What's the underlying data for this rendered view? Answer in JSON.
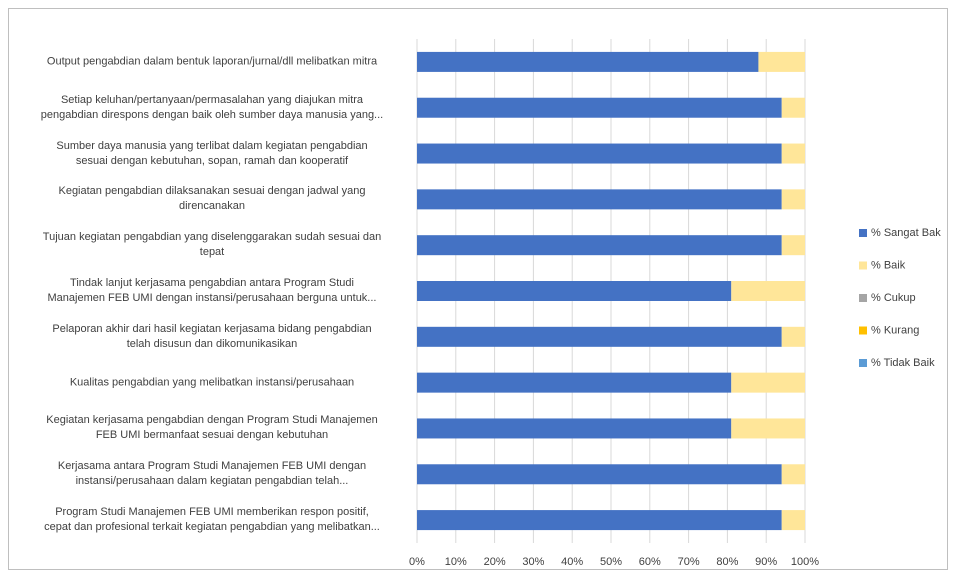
{
  "chart_data": {
    "type": "bar",
    "orientation": "horizontal",
    "stacked": true,
    "categories": [
      "Output pengabdian dalam bentuk laporan/jurnal/dll melibatkan mitra",
      "Setiap keluhan/pertanyaan/permasalahan yang diajukan mitra\npengabdian direspons dengan baik oleh sumber daya manusia yang...",
      "Sumber daya manusia yang terlibat dalam kegiatan pengabdian\nsesuai dengan kebutuhan, sopan, ramah dan kooperatif",
      "Kegiatan pengabdian dilaksanakan sesuai dengan jadwal yang\ndirencanakan",
      "Tujuan kegiatan pengabdian yang diselenggarakan sudah sesuai dan\ntepat",
      "Tindak lanjut kerjasama pengabdian antara Program Studi\nManajemen FEB UMI dengan instansi/perusahaan berguna untuk...",
      "Pelaporan akhir dari hasil kegiatan kerjasama bidang pengabdian\ntelah disusun dan dikomunikasikan",
      "Kualitas pengabdian yang melibatkan instansi/perusahaan",
      "Kegiatan kerjasama pengabdian dengan Program Studi Manajemen\nFEB UMI bermanfaat sesuai dengan kebutuhan",
      "Kerjasama antara Program Studi Manajemen FEB UMI dengan\ninstansi/perusahaan dalam kegiatan pengabdian telah...",
      "Program Studi Manajemen FEB UMI memberikan respon positif,\ncepat dan profesional terkait kegiatan pengabdian yang melibatkan..."
    ],
    "series": [
      {
        "name": "% Sangat Bak",
        "color": "#4472c4",
        "values": [
          88,
          94,
          94,
          94,
          94,
          81,
          94,
          81,
          81,
          94,
          94
        ]
      },
      {
        "name": "% Baik",
        "color": "#ffe699",
        "values": [
          12,
          6,
          6,
          6,
          6,
          19,
          6,
          19,
          19,
          6,
          6
        ]
      },
      {
        "name": "% Cukup",
        "color": "#a5a5a5",
        "values": [
          0,
          0,
          0,
          0,
          0,
          0,
          0,
          0,
          0,
          0,
          0
        ]
      },
      {
        "name": "% Kurang",
        "color": "#ffc000",
        "values": [
          0,
          0,
          0,
          0,
          0,
          0,
          0,
          0,
          0,
          0,
          0
        ]
      },
      {
        "name": "% Tidak Baik",
        "color": "#5b9bd5",
        "values": [
          0,
          0,
          0,
          0,
          0,
          0,
          0,
          0,
          0,
          0,
          0
        ]
      }
    ],
    "xlim": [
      0,
      100
    ],
    "xticks": [
      {
        "value": 0,
        "label": "0%"
      },
      {
        "value": 10,
        "label": "10%"
      },
      {
        "value": 20,
        "label": "20%"
      },
      {
        "value": 30,
        "label": "30%"
      },
      {
        "value": 40,
        "label": "40%"
      },
      {
        "value": 50,
        "label": "50%"
      },
      {
        "value": 60,
        "label": "60%"
      },
      {
        "value": 70,
        "label": "70%"
      },
      {
        "value": 80,
        "label": "80%"
      },
      {
        "value": 90,
        "label": "90%"
      },
      {
        "value": 100,
        "label": "100%"
      }
    ],
    "grid": true,
    "legend": "right"
  }
}
